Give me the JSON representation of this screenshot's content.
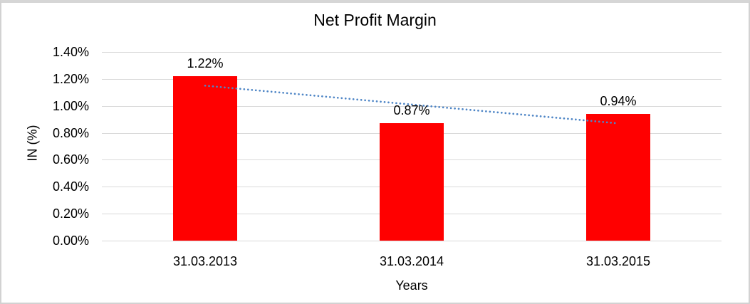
{
  "chart_data": {
    "type": "bar",
    "title": "Net Profit Margin",
    "categories": [
      "31.03.2013",
      "31.03.2014",
      "31.03.2015"
    ],
    "values": [
      1.22,
      0.87,
      0.94
    ],
    "data_labels": [
      "1.22%",
      "0.87%",
      "0.94%"
    ],
    "xlabel": "Years",
    "ylabel": "IN (%)",
    "ylim": [
      0,
      1.4
    ],
    "ytick_step": 0.2,
    "ytick_labels": [
      "0.00%",
      "0.20%",
      "0.40%",
      "0.60%",
      "0.80%",
      "1.00%",
      "1.20%",
      "1.40%"
    ],
    "grid": true,
    "legend": "none",
    "bar_color": "#ff0000",
    "gridline_color": "#d9d9d9",
    "trendline": {
      "type": "linear",
      "line_style": "dotted",
      "color": "#4f86c6"
    }
  }
}
